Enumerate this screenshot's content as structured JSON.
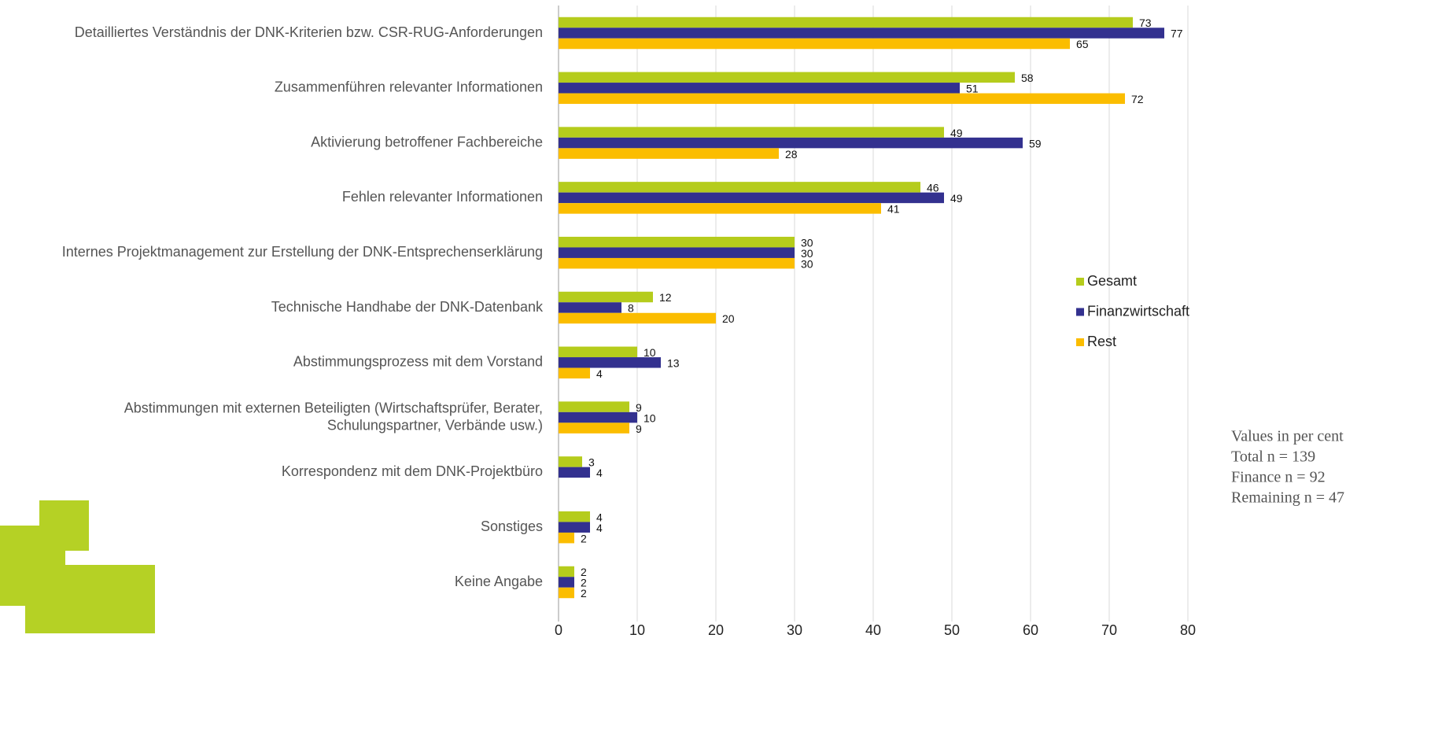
{
  "chart_data": {
    "type": "bar",
    "orientation": "horizontal",
    "categories": [
      "Detailliertes Verständnis der DNK-Kriterien bzw. CSR-RUG-Anforderungen",
      "Zusammenführen relevanter Informationen",
      "Aktivierung betroffener Fachbereiche",
      "Fehlen relevanter Informationen",
      "Internes Projektmanagement zur Erstellung der DNK-Entsprechenserklärung",
      "Technische Handhabe der DNK-Datenbank",
      "Abstimmungsprozess mit dem Vorstand",
      "Abstimmungen mit externen Beteiligten (Wirtschaftsprüfer, Berater,\nSchulungspartner, Verbände usw.)",
      "Korrespondenz mit dem DNK-Projektbüro",
      "Sonstiges",
      "Keine Angabe"
    ],
    "series": [
      {
        "name": "Gesamt",
        "color": "#b5cc1c",
        "values": [
          73,
          58,
          49,
          46,
          30,
          12,
          10,
          9,
          3,
          4,
          2
        ]
      },
      {
        "name": "Finanzwirtschaft",
        "color": "#33318f",
        "values": [
          77,
          51,
          59,
          49,
          30,
          8,
          13,
          10,
          4,
          4,
          2
        ]
      },
      {
        "name": "Rest",
        "color": "#fbbd00",
        "values": [
          65,
          72,
          28,
          41,
          30,
          20,
          4,
          9,
          null,
          2,
          2
        ]
      }
    ],
    "xlim": [
      0,
      80
    ],
    "xticks": [
      0,
      10,
      20,
      30,
      40,
      50,
      60,
      70,
      80
    ],
    "grid": true,
    "legend": "right",
    "annotations": [
      "Values in per cent",
      "Total n = 139",
      "Finance n = 92",
      "Remaining n = 47"
    ]
  }
}
